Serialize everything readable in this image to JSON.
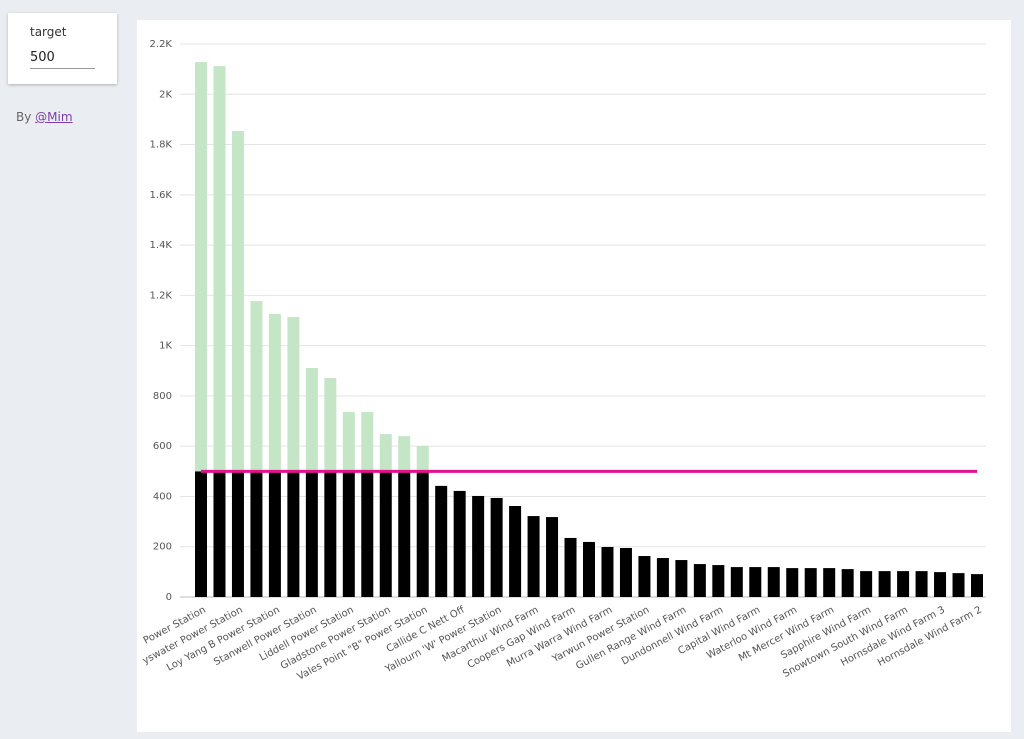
{
  "controls": {
    "target": {
      "label": "target",
      "value": 500
    }
  },
  "byline": {
    "prefix": "By",
    "link": "@Mim"
  },
  "chart_data": {
    "type": "bar",
    "categories": [
      "Power Station",
      null,
      "yswater Power Station",
      null,
      "Loy Yang B Power Station",
      null,
      "Stanwell Power Station",
      null,
      "Liddell Power Station",
      null,
      "Gladstone Power Station",
      null,
      "Vales Point \"B\" Power Station",
      null,
      "Callide C Nett Off",
      null,
      "Yallourn 'W' Power Station",
      null,
      "Macarthur Wind Farm",
      null,
      "Coopers Gap Wind Farm",
      null,
      "Murra Warra Wind Farm",
      null,
      "Yarwun Power Station",
      null,
      "Gullen Range Wind Farm",
      null,
      "Dundonnell Wind Farm",
      null,
      "Capital Wind Farm",
      null,
      "Waterloo Wind Farm",
      null,
      "Mt Mercer Wind Farm",
      null,
      "Sapphire Wind Farm",
      null,
      "Snowtown South Wind Farm",
      null,
      "Hornsdale Wind Farm 3",
      null,
      "Hornsdale Wind Farm 2"
    ],
    "values": [
      2128,
      2112,
      1854,
      1177,
      1126,
      1114,
      911,
      871,
      736,
      736,
      648,
      640,
      601,
      442,
      422,
      402,
      394,
      362,
      322,
      318,
      235,
      219,
      199,
      195,
      163,
      155,
      147,
      131,
      127,
      119,
      119,
      119,
      115,
      115,
      115,
      111,
      103,
      103,
      103,
      103,
      99,
      95,
      91
    ],
    "color_below": "#000000",
    "color_above": "#c5e5c7",
    "target_color": "#e0138c",
    "ylim": [
      0,
      2200
    ],
    "yticks": [
      0,
      200,
      400,
      600,
      800,
      {
        "value": 1000,
        "label": "1K"
      },
      {
        "value": 1200,
        "label": "1.2K"
      },
      {
        "value": 1400,
        "label": "1.4K"
      },
      {
        "value": 1600,
        "label": "1.6K"
      },
      {
        "value": 1800,
        "label": "1.8K"
      },
      {
        "value": 2000,
        "label": "2K"
      },
      {
        "value": 2200,
        "label": "2.2K"
      }
    ],
    "grid": true
  }
}
